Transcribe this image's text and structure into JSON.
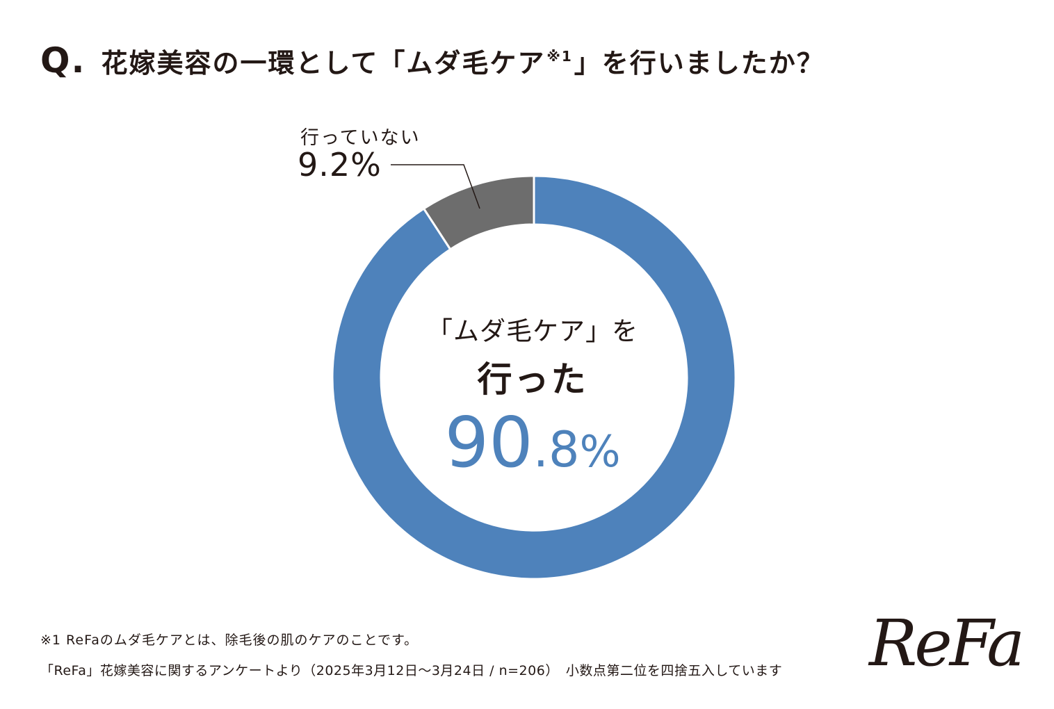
{
  "title": {
    "q_mark": "Q.",
    "text_main": "花嫁美容の一環として「ムダ毛ケア",
    "text_sup": "※1",
    "text_end": "」を行いましたか？"
  },
  "chart_data": {
    "type": "pie",
    "style": "donut",
    "categories": [
      "行った",
      "行っていない"
    ],
    "values": [
      90.8,
      9.2
    ],
    "unit": "%",
    "colors": [
      "#4e82bb",
      "#6d6d6d"
    ],
    "title": "花嫁美容の一環として「ムダ毛ケア※1」を行いましたか？",
    "slice_labels": {
      "not_done_label": "行っていない",
      "not_done_value": "9.2%",
      "done_label_line1": "「ムダ毛ケア」を",
      "done_label_line2": "行った",
      "done_value_int": "90",
      "done_value_dec": ".8",
      "done_value_pct": "%"
    }
  },
  "footnote": {
    "line1": "※1  ReFaのムダ毛ケアとは、除毛後の肌のケアのことです。",
    "line2": "「ReFa」花嫁美容に関するアンケートより（2025年3月12日～3月24日 / n=206）　小数点第二位を四捨五入しています"
  },
  "logo": "ReFa"
}
